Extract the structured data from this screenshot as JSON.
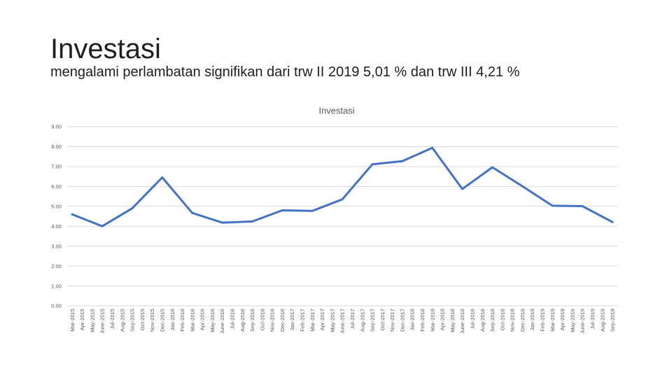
{
  "slide": {
    "title": "Investasi",
    "subtitle": "mengalami perlambatan signifikan dari trw II 2019 5,01 % dan trw III 4,21 %"
  },
  "colors": {
    "line": "#4472C4",
    "gridline": "#D9D9D9",
    "axis_text": "#595959"
  },
  "chart_data": {
    "type": "line",
    "title": "Investasi",
    "categories": [
      "Mar-2015",
      "Apr-2015",
      "May-2015",
      "June-2015",
      "Jul-2015",
      "Aug-2015",
      "Sep-2015",
      "Oct-2015",
      "Nov-2015",
      "Dec-2015",
      "Jan-2016",
      "Feb-2016",
      "Mar-2016",
      "Apr-2016",
      "May-2016",
      "June-2016",
      "Jul-2016",
      "Aug-2016",
      "Sep-2016",
      "Oct-2016",
      "Nov-2016",
      "Dec-2016",
      "Jan-2017",
      "Feb-2017",
      "Mar-2017",
      "Apr-2017",
      "May-2017",
      "June-2017",
      "Jul-2017",
      "Aug-2017",
      "Sep-2017",
      "Oct-2017",
      "Nov-2017",
      "Dec-2017",
      "Jan-2018",
      "Feb-2018",
      "Mar-2018",
      "Apr-2018",
      "May-2018",
      "June-2018",
      "Jul-2018",
      "Aug-2018",
      "Sep-2018",
      "Oct-2018",
      "Nov-2018",
      "Dec-2018",
      "Jan-2019",
      "Feb-2019",
      "Mar-2019",
      "Apr-2019",
      "May-2019",
      "June-2019",
      "Jul-2019",
      "Aug-2019",
      "Sep-2019"
    ],
    "series": [
      {
        "values": [
          4.6,
          null,
          null,
          4.0,
          null,
          null,
          4.9,
          null,
          null,
          6.45,
          null,
          null,
          4.67,
          null,
          null,
          4.18,
          null,
          null,
          4.24,
          null,
          null,
          4.8,
          null,
          null,
          4.77,
          null,
          null,
          5.35,
          null,
          null,
          7.11,
          null,
          null,
          7.27,
          null,
          null,
          7.94,
          null,
          null,
          5.87,
          null,
          null,
          6.96,
          null,
          null,
          6.01,
          null,
          null,
          5.03,
          null,
          null,
          5.01,
          null,
          null,
          4.21
        ]
      }
    ],
    "ylim": [
      0,
      9
    ],
    "ytick_labels": [
      "0.00",
      "1.00",
      "2.00",
      "3.00",
      "4.00",
      "5.00",
      "6.00",
      "7.00",
      "8.00",
      "9.00"
    ],
    "grid": true,
    "legend": "none"
  }
}
